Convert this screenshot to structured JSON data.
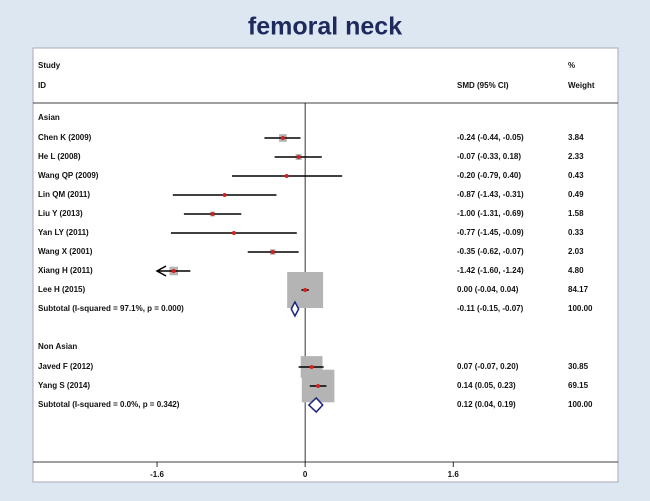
{
  "chart_data": {
    "type": "forest",
    "title": "femoral neck",
    "header": {
      "study": "Study",
      "id": "ID",
      "effect": "SMD (95% CI)",
      "pct": "%",
      "weight": "Weight"
    },
    "xlim": [
      -2.94,
      3.38
    ],
    "xticks": [
      -1.6,
      0,
      1.6
    ],
    "ci_clip": [
      -1.6,
      1.6
    ],
    "groups": [
      {
        "name": "Asian",
        "studies": [
          {
            "study": "Chen K (2009)",
            "est": -0.24,
            "lo": -0.44,
            "hi": -0.05,
            "ci_label": "-0.24 (-0.44, -0.05)",
            "weight": 3.84,
            "weight_label": "3.84"
          },
          {
            "study": "He L (2008)",
            "est": -0.07,
            "lo": -0.33,
            "hi": 0.18,
            "ci_label": "-0.07 (-0.33, 0.18)",
            "weight": 2.33,
            "weight_label": "2.33"
          },
          {
            "study": "Wang QP (2009)",
            "est": -0.2,
            "lo": -0.79,
            "hi": 0.4,
            "ci_label": "-0.20 (-0.79, 0.40)",
            "weight": 0.43,
            "weight_label": "0.43"
          },
          {
            "study": "Lin QM (2011)",
            "est": -0.87,
            "lo": -1.43,
            "hi": -0.31,
            "ci_label": "-0.87 (-1.43, -0.31)",
            "weight": 0.49,
            "weight_label": "0.49"
          },
          {
            "study": "Liu Y (2013)",
            "est": -1.0,
            "lo": -1.31,
            "hi": -0.69,
            "ci_label": "-1.00 (-1.31, -0.69)",
            "weight": 1.58,
            "weight_label": "1.58"
          },
          {
            "study": "Yan LY (2011)",
            "est": -0.77,
            "lo": -1.45,
            "hi": -0.09,
            "ci_label": "-0.77 (-1.45, -0.09)",
            "weight": 0.33,
            "weight_label": "0.33"
          },
          {
            "study": "Wang X (2001)",
            "est": -0.35,
            "lo": -0.62,
            "hi": -0.07,
            "ci_label": "-0.35 (-0.62, -0.07)",
            "weight": 2.03,
            "weight_label": "2.03"
          },
          {
            "study": "Xiang H (2011)",
            "est": -1.42,
            "lo": -1.6,
            "hi": -1.24,
            "ci_label": "-1.42 (-1.60, -1.24)",
            "weight": 4.8,
            "weight_label": "4.80"
          },
          {
            "study": "Lee H (2015)",
            "est": 0.0,
            "lo": -0.04,
            "hi": 0.04,
            "ci_label": "0.00 (-0.04, 0.04)",
            "weight": 84.17,
            "weight_label": "84.17"
          }
        ],
        "subtotal": {
          "label": "Subtotal  (I-squared = 97.1%, p = 0.000)",
          "est": -0.11,
          "lo": -0.15,
          "hi": -0.07,
          "ci_label": "-0.11 (-0.15, -0.07)",
          "weight": 100,
          "weight_label": "100.00"
        }
      },
      {
        "name": "Non Asian",
        "studies": [
          {
            "study": "Javed F (2012)",
            "est": 0.07,
            "lo": -0.07,
            "hi": 0.2,
            "ci_label": "0.07 (-0.07, 0.20)",
            "weight": 30.85,
            "weight_label": "30.85"
          },
          {
            "study": "Yang S (2014)",
            "est": 0.14,
            "lo": 0.05,
            "hi": 0.23,
            "ci_label": "0.14 (0.05, 0.23)",
            "weight": 69.15,
            "weight_label": "69.15"
          }
        ],
        "subtotal": {
          "label": "Subtotal  (I-squared = 0.0%, p = 0.342)",
          "est": 0.12,
          "lo": 0.04,
          "hi": 0.19,
          "ci_label": "0.12 (0.04, 0.19)",
          "weight": 100,
          "weight_label": "100.00"
        }
      }
    ]
  }
}
